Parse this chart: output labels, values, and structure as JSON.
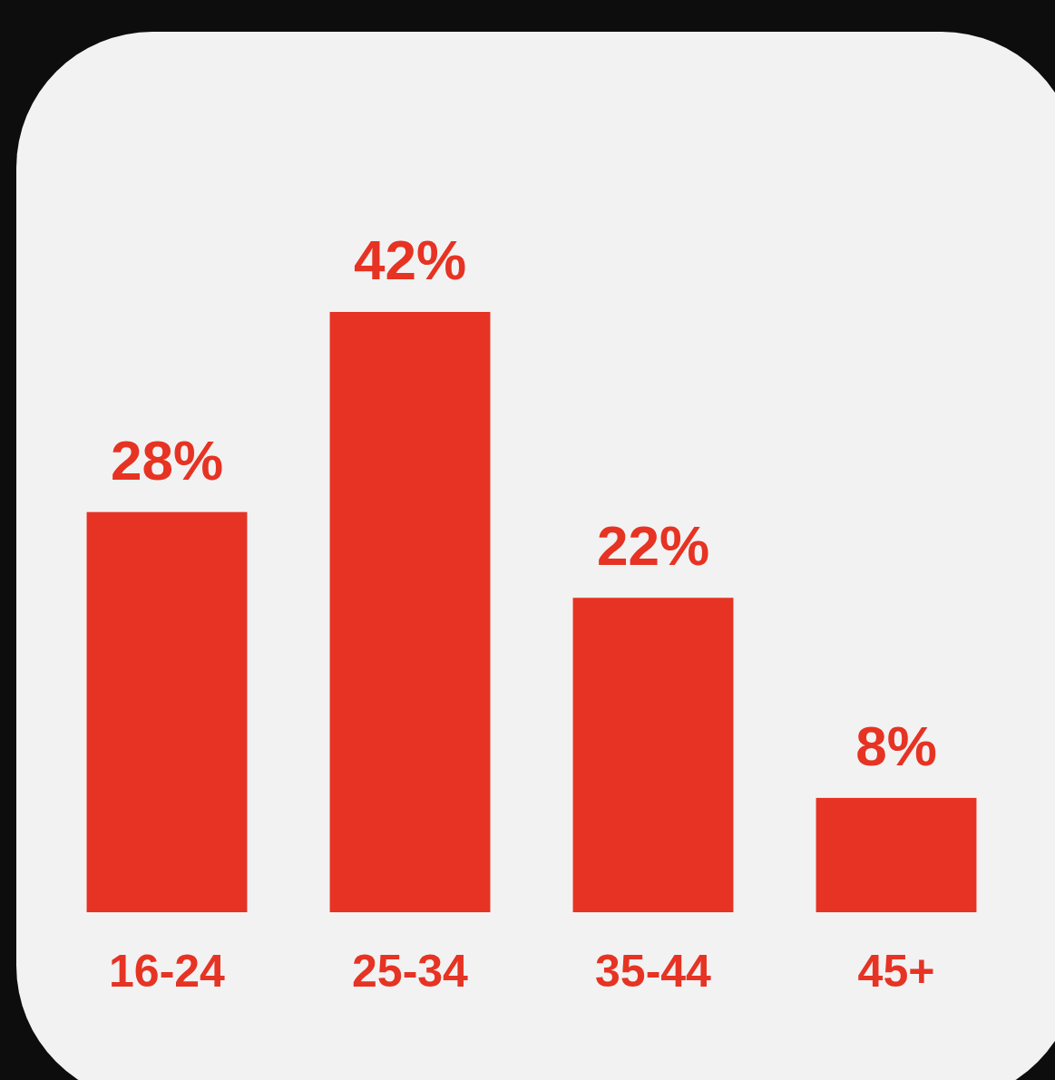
{
  "chart_data": {
    "type": "bar",
    "categories": [
      "16-24",
      "25-34",
      "35-44",
      "45+"
    ],
    "values": [
      28,
      42,
      22,
      8
    ],
    "value_labels": [
      "28%",
      "42%",
      "22%",
      "8%"
    ],
    "color": "#e63323"
  }
}
